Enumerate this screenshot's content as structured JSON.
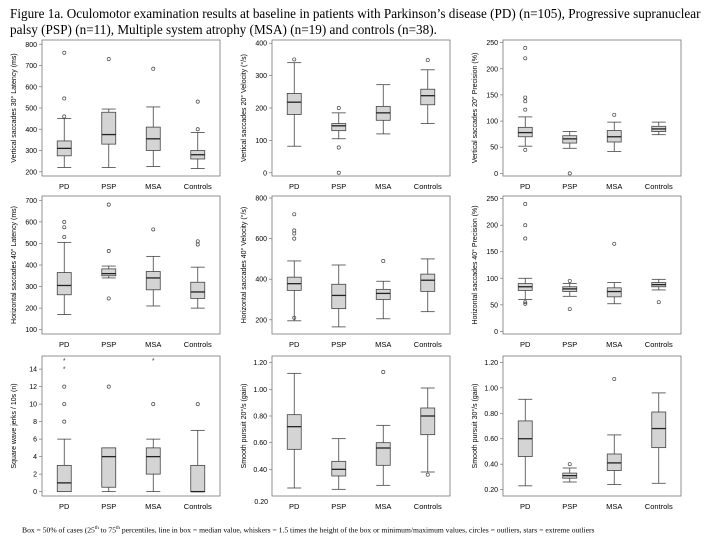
{
  "figure": {
    "title": "Figure 1a. Oculomotor examination results at baseline in patients with Parkinson’s disease (PD) (n=105), Progressive supranuclear palsy (PSP) (n=11), Multiple system atrophy (MSA) (n=19) and controls (n=38).",
    "footnote_a": "Box = 50% of cases (25",
    "footnote_sup1": "th",
    "footnote_b": " to 75",
    "footnote_sup2": "th",
    "footnote_c": " percentiles, line in box = median value,  whiskers = 1.5 times the height of the box or minimum/maximum values, circles = outliers, stars = extreme outliers"
  },
  "colors": {
    "box_fill": "#d4d4d4",
    "stroke": "#444444",
    "frame": "#777777"
  },
  "chart_data": [
    {
      "type": "boxplot",
      "ylabel": "Vertical saccades 30° Latency (ms)",
      "categories": [
        "PD",
        "PSP",
        "MSA",
        "Controls"
      ],
      "ylim": [
        180,
        820
      ],
      "yticks": [
        200,
        300,
        400,
        500,
        600,
        700,
        800
      ],
      "series": [
        {
          "category": "PD",
          "whisker_low": 220,
          "q1": 275,
          "median": 310,
          "q3": 345,
          "whisker_high": 450,
          "outliers": [
            460,
            545,
            760
          ]
        },
        {
          "category": "PSP",
          "whisker_low": 220,
          "q1": 330,
          "median": 375,
          "q3": 480,
          "whisker_high": 495,
          "outliers": [
            730
          ]
        },
        {
          "category": "MSA",
          "whisker_low": 225,
          "q1": 300,
          "median": 355,
          "q3": 410,
          "whisker_high": 505,
          "outliers": [
            685
          ]
        },
        {
          "category": "Controls",
          "whisker_low": 215,
          "q1": 260,
          "median": 280,
          "q3": 300,
          "whisker_high": 385,
          "outliers": [
            400,
            530
          ]
        }
      ]
    },
    {
      "type": "boxplot",
      "ylabel": "Vertical saccades 20° Velocity (°/s)",
      "categories": [
        "PD",
        "PSP",
        "MSA",
        "Controls"
      ],
      "ylim": [
        -10,
        410
      ],
      "yticks": [
        0,
        100,
        200,
        300,
        400
      ],
      "series": [
        {
          "category": "PD",
          "whisker_low": 82,
          "q1": 180,
          "median": 218,
          "q3": 245,
          "whisker_high": 340,
          "outliers": [
            350
          ]
        },
        {
          "category": "PSP",
          "whisker_low": 105,
          "q1": 130,
          "median": 145,
          "q3": 152,
          "whisker_high": 185,
          "outliers": [
            200,
            78,
            0
          ]
        },
        {
          "category": "MSA",
          "whisker_low": 120,
          "q1": 162,
          "median": 185,
          "q3": 205,
          "whisker_high": 272,
          "outliers": []
        },
        {
          "category": "Controls",
          "whisker_low": 152,
          "q1": 210,
          "median": 238,
          "q3": 258,
          "whisker_high": 318,
          "outliers": [
            348
          ]
        }
      ],
      "extra_labels": [
        "PD",
        "PSP",
        "MSA",
        "Controls"
      ]
    },
    {
      "type": "boxplot",
      "ylabel": "Vertical saccades 20° Precision (%)",
      "categories": [
        "PD",
        "PSP",
        "MSA",
        "Controls"
      ],
      "ylim": [
        -5,
        255
      ],
      "yticks": [
        0,
        50,
        100,
        150,
        200,
        250
      ],
      "series": [
        {
          "category": "PD",
          "whisker_low": 52,
          "q1": 70,
          "median": 78,
          "q3": 88,
          "whisker_high": 108,
          "outliers": [
            45,
            122,
            138,
            145,
            220,
            240
          ]
        },
        {
          "category": "PSP",
          "whisker_low": 48,
          "q1": 58,
          "median": 66,
          "q3": 72,
          "whisker_high": 80,
          "outliers": [
            0
          ]
        },
        {
          "category": "MSA",
          "whisker_low": 42,
          "q1": 60,
          "median": 70,
          "q3": 82,
          "whisker_high": 98,
          "outliers": [
            112
          ]
        },
        {
          "category": "Controls",
          "whisker_low": 74,
          "q1": 80,
          "median": 85,
          "q3": 90,
          "whisker_high": 98,
          "outliers": []
        }
      ]
    },
    {
      "type": "boxplot",
      "ylabel": "Horizontal saccades 40° Latency (ms)",
      "categories": [
        "PD",
        "PSP",
        "MSA",
        "Controls"
      ],
      "ylim": [
        80,
        720
      ],
      "yticks": [
        100,
        200,
        300,
        400,
        500,
        600,
        700
      ],
      "series": [
        {
          "category": "PD",
          "whisker_low": 170,
          "q1": 262,
          "median": 305,
          "q3": 365,
          "whisker_high": 505,
          "outliers": [
            530,
            575,
            600
          ]
        },
        {
          "category": "PSP",
          "whisker_low": 340,
          "q1": 350,
          "median": 360,
          "q3": 382,
          "whisker_high": 395,
          "outliers": [
            465,
            680,
            245
          ]
        },
        {
          "category": "MSA",
          "whisker_low": 210,
          "q1": 285,
          "median": 340,
          "q3": 370,
          "whisker_high": 440,
          "outliers": [
            565
          ]
        },
        {
          "category": "Controls",
          "whisker_low": 200,
          "q1": 245,
          "median": 275,
          "q3": 320,
          "whisker_high": 390,
          "outliers": [
            495,
            510
          ]
        }
      ]
    },
    {
      "type": "boxplot",
      "ylabel": "Horizontal saccades 40° Velocity (°/s)",
      "categories": [
        "PD",
        "PSP",
        "MSA",
        "Controls"
      ],
      "ylim": [
        130,
        810
      ],
      "yticks": [
        200,
        400,
        600,
        800
      ],
      "series": [
        {
          "category": "PD",
          "whisker_low": 195,
          "q1": 345,
          "median": 378,
          "q3": 410,
          "whisker_high": 490,
          "outliers": [
            210,
            600,
            625,
            640,
            720
          ]
        },
        {
          "category": "PSP",
          "whisker_low": 165,
          "q1": 255,
          "median": 320,
          "q3": 375,
          "whisker_high": 470,
          "outliers": []
        },
        {
          "category": "MSA",
          "whisker_low": 205,
          "q1": 300,
          "median": 330,
          "q3": 350,
          "whisker_high": 390,
          "outliers": [
            490
          ]
        },
        {
          "category": "Controls",
          "whisker_low": 240,
          "q1": 340,
          "median": 395,
          "q3": 425,
          "whisker_high": 500,
          "outliers": []
        }
      ]
    },
    {
      "type": "boxplot",
      "ylabel": "Horizontal saccades 40° Precision (%)",
      "categories": [
        "PD",
        "PSP",
        "MSA",
        "Controls"
      ],
      "ylim": [
        -5,
        255
      ],
      "yticks": [
        0,
        50,
        100,
        150,
        200,
        250
      ],
      "series": [
        {
          "category": "PD",
          "whisker_low": 60,
          "q1": 77,
          "median": 84,
          "q3": 90,
          "whisker_high": 100,
          "outliers": [
            52,
            55,
            175,
            200,
            240
          ]
        },
        {
          "category": "PSP",
          "whisker_low": 66,
          "q1": 75,
          "median": 80,
          "q3": 84,
          "whisker_high": 90,
          "outliers": [
            42,
            95
          ]
        },
        {
          "category": "MSA",
          "whisker_low": 52,
          "q1": 65,
          "median": 75,
          "q3": 82,
          "whisker_high": 92,
          "outliers": [
            165
          ]
        },
        {
          "category": "Controls",
          "whisker_low": 78,
          "q1": 84,
          "median": 88,
          "q3": 92,
          "whisker_high": 98,
          "outliers": [
            55
          ]
        }
      ]
    },
    {
      "type": "boxplot",
      "ylabel": "Square wave jerks / 10s (n)",
      "categories": [
        "PD",
        "PSP",
        "MSA",
        "Controls"
      ],
      "ylim": [
        -0.5,
        15.5
      ],
      "yticks": [
        0,
        2,
        4,
        6,
        8,
        10,
        12,
        14
      ],
      "series": [
        {
          "category": "PD",
          "whisker_low": 0,
          "q1": 0,
          "median": 1,
          "q3": 3,
          "whisker_high": 6,
          "outliers": [
            8,
            10,
            12
          ],
          "extremes": [
            14,
            15
          ]
        },
        {
          "category": "PSP",
          "whisker_low": 0,
          "q1": 0.5,
          "median": 4,
          "q3": 5,
          "whisker_high": 5,
          "outliers": [
            12
          ]
        },
        {
          "category": "MSA",
          "whisker_low": 0,
          "q1": 2,
          "median": 4,
          "q3": 5,
          "whisker_high": 6,
          "outliers": [
            10
          ],
          "extremes": [
            15
          ]
        },
        {
          "category": "Controls",
          "whisker_low": 0,
          "q1": 0,
          "median": 0,
          "q3": 3,
          "whisker_high": 7,
          "outliers": [
            10
          ]
        }
      ]
    },
    {
      "type": "boxplot",
      "ylabel": "Smooth pursuit 20°/s (gain)",
      "categories": [
        "PD",
        "PSP",
        "MSA",
        "Controls"
      ],
      "ylim": [
        0.2,
        1.25
      ],
      "yticks": [
        0.4,
        0.6,
        0.8,
        1.0,
        1.2
      ],
      "ytick_labels": [
        "0.40",
        "0.60",
        "0.80",
        "1.00",
        "1.20"
      ],
      "series": [
        {
          "category": "PD",
          "whisker_low": 0.26,
          "q1": 0.55,
          "median": 0.72,
          "q3": 0.81,
          "whisker_high": 1.12,
          "outliers": []
        },
        {
          "category": "PSP",
          "whisker_low": 0.25,
          "q1": 0.35,
          "median": 0.4,
          "q3": 0.46,
          "whisker_high": 0.63,
          "outliers": []
        },
        {
          "category": "MSA",
          "whisker_low": 0.28,
          "q1": 0.43,
          "median": 0.56,
          "q3": 0.6,
          "whisker_high": 0.73,
          "outliers": [
            1.13
          ]
        },
        {
          "category": "Controls",
          "whisker_low": 0.38,
          "q1": 0.66,
          "median": 0.8,
          "q3": 0.86,
          "whisker_high": 1.01,
          "outliers": [
            0.36
          ]
        }
      ],
      "extra_labels": [
        "0.20"
      ]
    },
    {
      "type": "boxplot",
      "ylabel": "Smooth pursuit 30°/s (gain)",
      "categories": [
        "PD",
        "PSP",
        "MSA",
        "Controls"
      ],
      "ylim": [
        0.15,
        1.25
      ],
      "yticks": [
        0.2,
        0.4,
        0.6,
        0.8,
        1.0,
        1.2
      ],
      "ytick_labels": [
        "0.20",
        "0.40",
        "0.60",
        "0.80",
        "1.00",
        "1.20"
      ],
      "series": [
        {
          "category": "PD",
          "whisker_low": 0.23,
          "q1": 0.46,
          "median": 0.6,
          "q3": 0.74,
          "whisker_high": 0.91,
          "outliers": []
        },
        {
          "category": "PSP",
          "whisker_low": 0.26,
          "q1": 0.29,
          "median": 0.31,
          "q3": 0.33,
          "whisker_high": 0.37,
          "outliers": [
            0.4
          ]
        },
        {
          "category": "MSA",
          "whisker_low": 0.24,
          "q1": 0.35,
          "median": 0.41,
          "q3": 0.48,
          "whisker_high": 0.63,
          "outliers": [
            1.07
          ]
        },
        {
          "category": "Controls",
          "whisker_low": 0.25,
          "q1": 0.53,
          "median": 0.68,
          "q3": 0.81,
          "whisker_high": 0.96,
          "outliers": []
        }
      ]
    }
  ]
}
